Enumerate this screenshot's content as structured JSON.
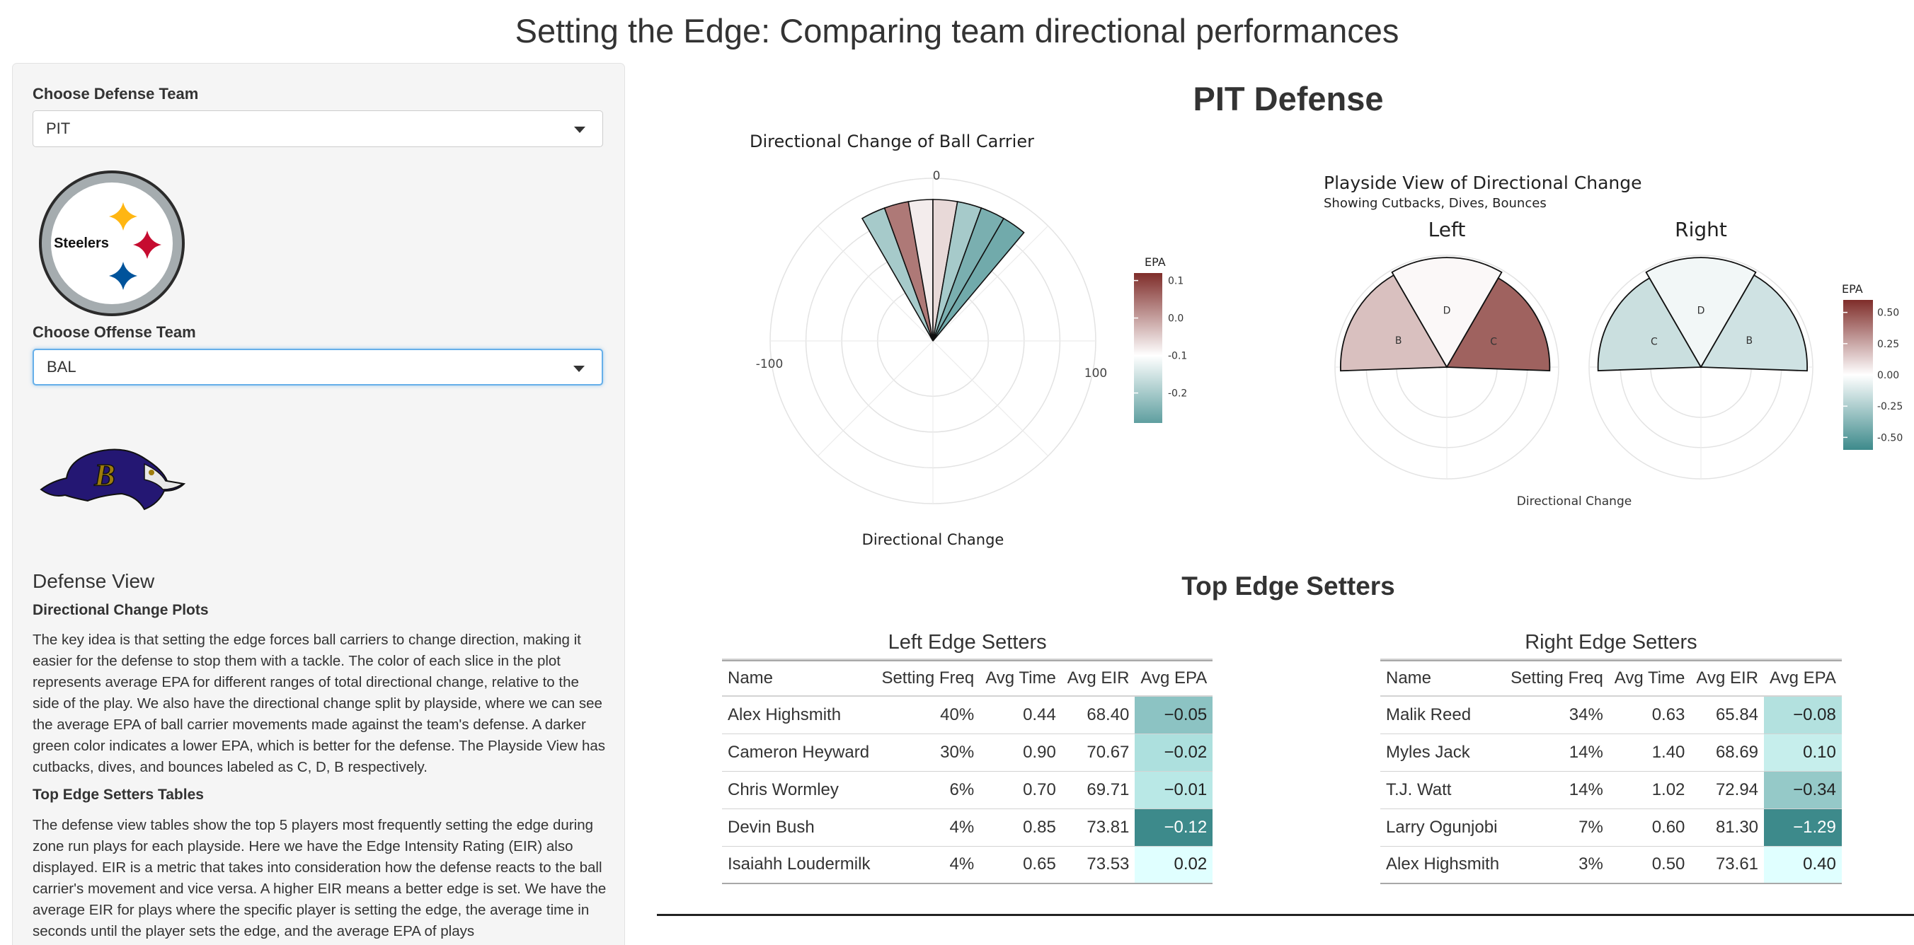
{
  "app": {
    "title": "Setting the Edge: Comparing team directional performances"
  },
  "sidebar": {
    "defense_label": "Choose Defense Team",
    "defense_value": "PIT",
    "defense_logo_text": "Steelers",
    "offense_label": "Choose Offense Team",
    "offense_value": "BAL",
    "offense_logo_text": "B",
    "section_title": "Defense View",
    "sub1": "Directional Change Plots",
    "para1": "The key idea is that setting the edge forces ball carriers to change direction, making it easier for the defense to stop them with a tackle. The color of each slice in the plot represents average EPA for different ranges of total directional change, relative to the side of the play. We also have the directional change split by playside, where we can see the average EPA of ball carrier movements made against the team's defense. A darker green color indicates a lower EPA, which is better for the defense. The Playside View has cutbacks, dives, and bounces labeled as C, D, B respectively.",
    "sub2": "Top Edge Setters Tables",
    "para2": "The defense view tables show the top 5 players most frequently setting the edge during zone run plays for each playside. Here we have the Edge Intensity Rating (EIR) also displayed. EIR is a metric that takes into consideration how the defense reacts to the ball carrier's movement and vice versa. A higher EIR means a better edge is set. We have the average EIR for plays where the specific player is setting the edge, the average time in seconds until the player sets the edge, and the average EPA of plays"
  },
  "main": {
    "title": "PIT Defense",
    "edge_title": "Top Edge Setters"
  },
  "chart_data": [
    {
      "type": "polar-bar",
      "title": "Directional Change of Ball Carrier",
      "xlabel": "Directional Change",
      "axis_ticks": [
        "0",
        "100",
        "-100"
      ],
      "legend_title": "EPA",
      "legend_ticks": [
        "0.1",
        "0.0",
        "-0.1",
        "-0.2"
      ],
      "legend_range": [
        -0.28,
        0.12
      ],
      "slice_width_deg": 10,
      "slices": [
        {
          "center_deg": -25,
          "epa": -0.2
        },
        {
          "center_deg": -15,
          "epa": 0.04
        },
        {
          "center_deg": -5,
          "epa": -0.08
        },
        {
          "center_deg": 5,
          "epa": -0.06
        },
        {
          "center_deg": 15,
          "epa": -0.2
        },
        {
          "center_deg": 25,
          "epa": -0.25
        },
        {
          "center_deg": 35,
          "epa": -0.26
        }
      ]
    },
    {
      "type": "polar-bar",
      "title": "Playside View of Directional Change",
      "subtitle": "Showing Cutbacks, Dives, Bounces",
      "xlabel": "Directional Change",
      "legend_title": "EPA",
      "legend_ticks": [
        "0.50",
        "0.25",
        "0.00",
        "-0.25",
        "-0.50"
      ],
      "legend_range": [
        -0.6,
        0.6
      ],
      "panels": [
        {
          "label": "Left",
          "slices": [
            {
              "label": "B",
              "epa": 0.18
            },
            {
              "label": "D",
              "epa": 0.02
            },
            {
              "label": "C",
              "epa": 0.45
            }
          ]
        },
        {
          "label": "Right",
          "slices": [
            {
              "label": "C",
              "epa": -0.2
            },
            {
              "label": "D",
              "epa": -0.05
            },
            {
              "label": "B",
              "epa": -0.18
            }
          ]
        }
      ]
    }
  ],
  "tables": {
    "columns": [
      "Name",
      "Setting Freq",
      "Avg Time",
      "Avg EIR",
      "Avg EPA"
    ],
    "left": {
      "caption": "Left Edge Setters",
      "rows": [
        {
          "name": "Alex Highsmith",
          "freq": "40%",
          "time": "0.44",
          "eir": "68.40",
          "epa": "−0.05",
          "bg": "#8cc3c3",
          "fg": "#222222"
        },
        {
          "name": "Cameron Heyward",
          "freq": "30%",
          "time": "0.90",
          "eir": "70.67",
          "epa": "−0.02",
          "bg": "#ade0de",
          "fg": "#222222"
        },
        {
          "name": "Chris Wormley",
          "freq": "6%",
          "time": "0.70",
          "eir": "69.71",
          "epa": "−0.01",
          "bg": "#b9e8e6",
          "fg": "#222222"
        },
        {
          "name": "Devin Bush",
          "freq": "4%",
          "time": "0.85",
          "eir": "73.81",
          "epa": "−0.12",
          "bg": "#3d8a8b",
          "fg": "#ffffff"
        },
        {
          "name": "Isaiahh Loudermilk",
          "freq": "4%",
          "time": "0.65",
          "eir": "73.53",
          "epa": "0.02",
          "bg": "#e0ffff",
          "fg": "#222222"
        }
      ]
    },
    "right": {
      "caption": "Right Edge Setters",
      "rows": [
        {
          "name": "Malik Reed",
          "freq": "34%",
          "time": "0.63",
          "eir": "65.84",
          "epa": "−0.08",
          "bg": "#b3e1df",
          "fg": "#222222"
        },
        {
          "name": "Myles Jack",
          "freq": "14%",
          "time": "1.40",
          "eir": "68.69",
          "epa": "0.10",
          "bg": "#c6eeec",
          "fg": "#222222"
        },
        {
          "name": "T.J. Watt",
          "freq": "14%",
          "time": "1.02",
          "eir": "72.94",
          "epa": "−0.34",
          "bg": "#95c9c8",
          "fg": "#222222"
        },
        {
          "name": "Larry Ogunjobi",
          "freq": "7%",
          "time": "0.60",
          "eir": "81.30",
          "epa": "−1.29",
          "bg": "#3d8a8b",
          "fg": "#ffffff"
        },
        {
          "name": "Alex Highsmith",
          "freq": "3%",
          "time": "0.50",
          "eir": "73.61",
          "epa": "0.40",
          "bg": "#e0ffff",
          "fg": "#222222"
        }
      ]
    }
  }
}
